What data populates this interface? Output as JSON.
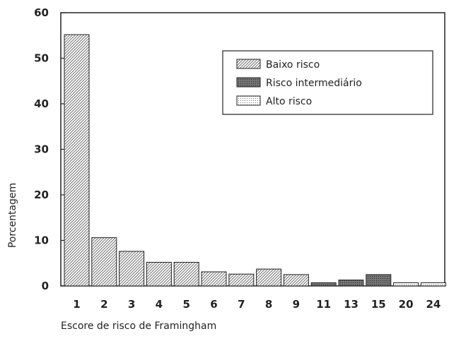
{
  "chart_data": {
    "type": "bar",
    "categories": [
      "1",
      "2",
      "3",
      "4",
      "5",
      "6",
      "7",
      "8",
      "9",
      "11",
      "13",
      "15",
      "20",
      "24"
    ],
    "values": [
      55.2,
      10.6,
      7.6,
      5.2,
      5.2,
      3.1,
      2.6,
      3.7,
      2.5,
      0.7,
      1.3,
      2.5,
      0.7,
      0.7
    ],
    "risk_class": [
      "baixo",
      "baixo",
      "baixo",
      "baixo",
      "baixo",
      "baixo",
      "baixo",
      "baixo",
      "baixo",
      "intermediario",
      "intermediario",
      "intermediario",
      "alto",
      "alto"
    ],
    "xlabel": "Escore de risco de Framingham",
    "ylabel": "Porcentagem",
    "ylim": [
      0,
      60
    ],
    "yticks": [
      0,
      10,
      20,
      30,
      40,
      50,
      60
    ],
    "grid": false,
    "legend_position": "top-right",
    "legend": [
      {
        "key": "baixo",
        "label": "Baixo risco"
      },
      {
        "key": "intermediario",
        "label": "Risco intermediário"
      },
      {
        "key": "alto",
        "label": "Alto risco"
      }
    ]
  }
}
